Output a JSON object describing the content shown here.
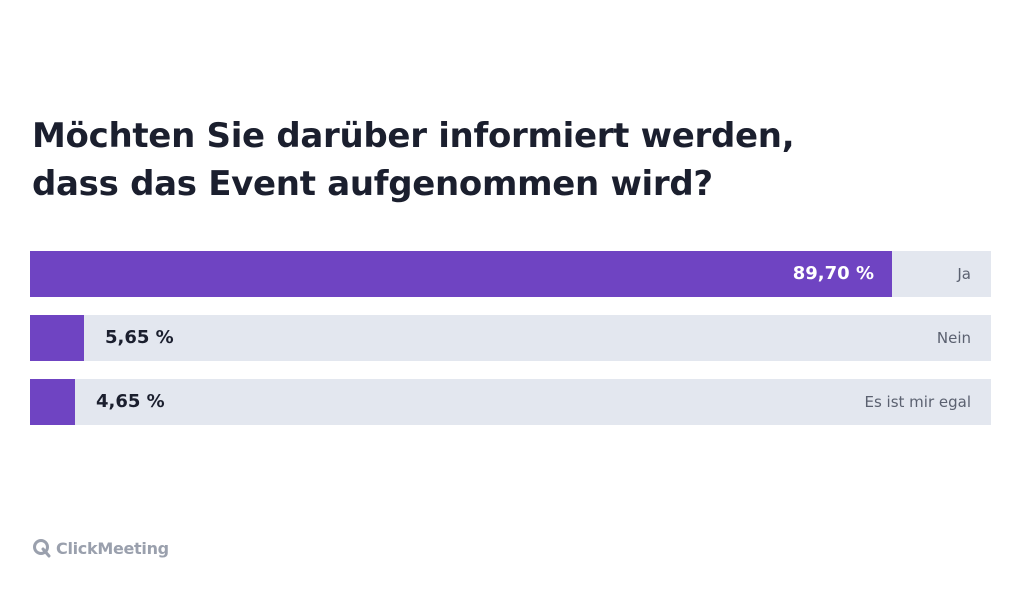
{
  "chart_data": {
    "type": "bar",
    "orientation": "horizontal",
    "title_lines": [
      "Möchten Sie darüber informiert werden,",
      "dass das Event aufgenommen wird?"
    ],
    "categories": [
      "Ja",
      "Nein",
      "Es ist mir egal"
    ],
    "values": [
      89.7,
      5.65,
      4.65
    ],
    "value_labels": [
      "89,70 %",
      "5,65 %",
      "4,65 %"
    ],
    "xlim": [
      0,
      100
    ],
    "grid": false,
    "legend": "none"
  },
  "colors": {
    "bar": "#6f44c2",
    "track": "#e3e7ef",
    "title": "#1b1f2e",
    "logo": "#9aa0ad"
  },
  "branding": {
    "logo_icon": "clickmeeting-logo-icon",
    "logo_text": "ClickMeeting"
  }
}
